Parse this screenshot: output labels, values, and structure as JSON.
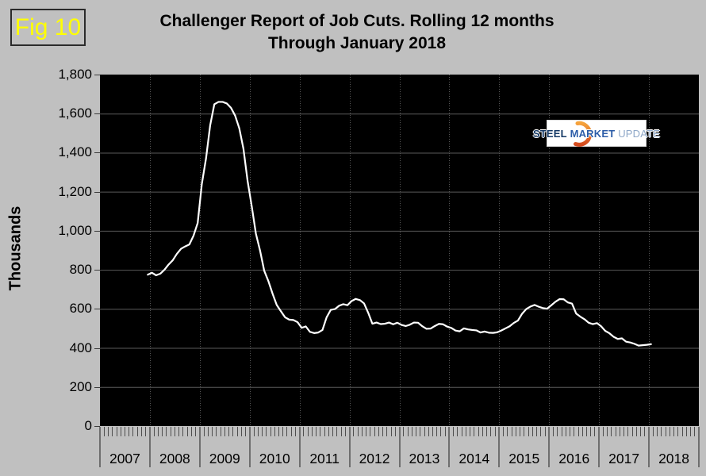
{
  "figure_label": "Fig 10",
  "title": {
    "line1": "Challenger Report of Job Cuts. Rolling 12 months",
    "line2": "Through January 2018"
  },
  "y_axis_title": "Thousands",
  "logo": {
    "steel": "STEEL",
    "market": "MARKET",
    "update": "UPDATE"
  },
  "colors": {
    "page_background": "#c0c0c0",
    "plot_background": "#000000",
    "line": "#ffffff",
    "gridline": "#5a5a5a",
    "figure_label_text": "#ffff00",
    "logo_crescent_top": "#f5a33c",
    "logo_crescent_bottom": "#d54a1e",
    "logo_steel": "#163a66",
    "logo_market": "#2d5da8",
    "logo_update": "#8fa8c8"
  },
  "chart_data": {
    "type": "line",
    "title": "Challenger Report of Job Cuts. Rolling 12 months Through January 2018",
    "ylabel": "Thousands",
    "ylim": [
      0,
      1800
    ],
    "ytick_step": 200,
    "ytick_labels": [
      "0",
      "200",
      "400",
      "600",
      "800",
      "1,000",
      "1,200",
      "1,400",
      "1,600",
      "1,800"
    ],
    "x_years": [
      "2007",
      "2008",
      "2009",
      "2010",
      "2011",
      "2012",
      "2013",
      "2014",
      "2015",
      "2016",
      "2017",
      "2018"
    ],
    "grid": "horizontal solid gray, vertical dotted gray at year boundaries",
    "legend": "none",
    "series": [
      {
        "name": "Job cuts, rolling 12 months (thousands)",
        "start_month": "2007-12",
        "end_month": "2018-01",
        "monthly_values": [
          775,
          785,
          772,
          780,
          800,
          827,
          849,
          882,
          908,
          920,
          930,
          975,
          1040,
          1240,
          1370,
          1540,
          1648,
          1660,
          1660,
          1652,
          1630,
          1590,
          1525,
          1420,
          1255,
          1125,
          985,
          898,
          795,
          742,
          678,
          620,
          588,
          557,
          545,
          543,
          532,
          503,
          510,
          482,
          476,
          479,
          492,
          557,
          595,
          599,
          616,
          624,
          619,
          640,
          651,
          645,
          628,
          580,
          524,
          530,
          522,
          524,
          530,
          521,
          529,
          518,
          512,
          519,
          530,
          529,
          511,
          498,
          499,
          512,
          523,
          521,
          509,
          502,
          489,
          485,
          500,
          495,
          492,
          490,
          479,
          484,
          478,
          477,
          480,
          489,
          500,
          511,
          528,
          540,
          575,
          599,
          612,
          620,
          611,
          604,
          601,
          618,
          636,
          650,
          649,
          633,
          627,
          576,
          560,
          547,
          529,
          522,
          527,
          511,
          487,
          475,
          457,
          446,
          449,
          432,
          428,
          421,
          412,
          414,
          416,
          419
        ]
      }
    ]
  }
}
